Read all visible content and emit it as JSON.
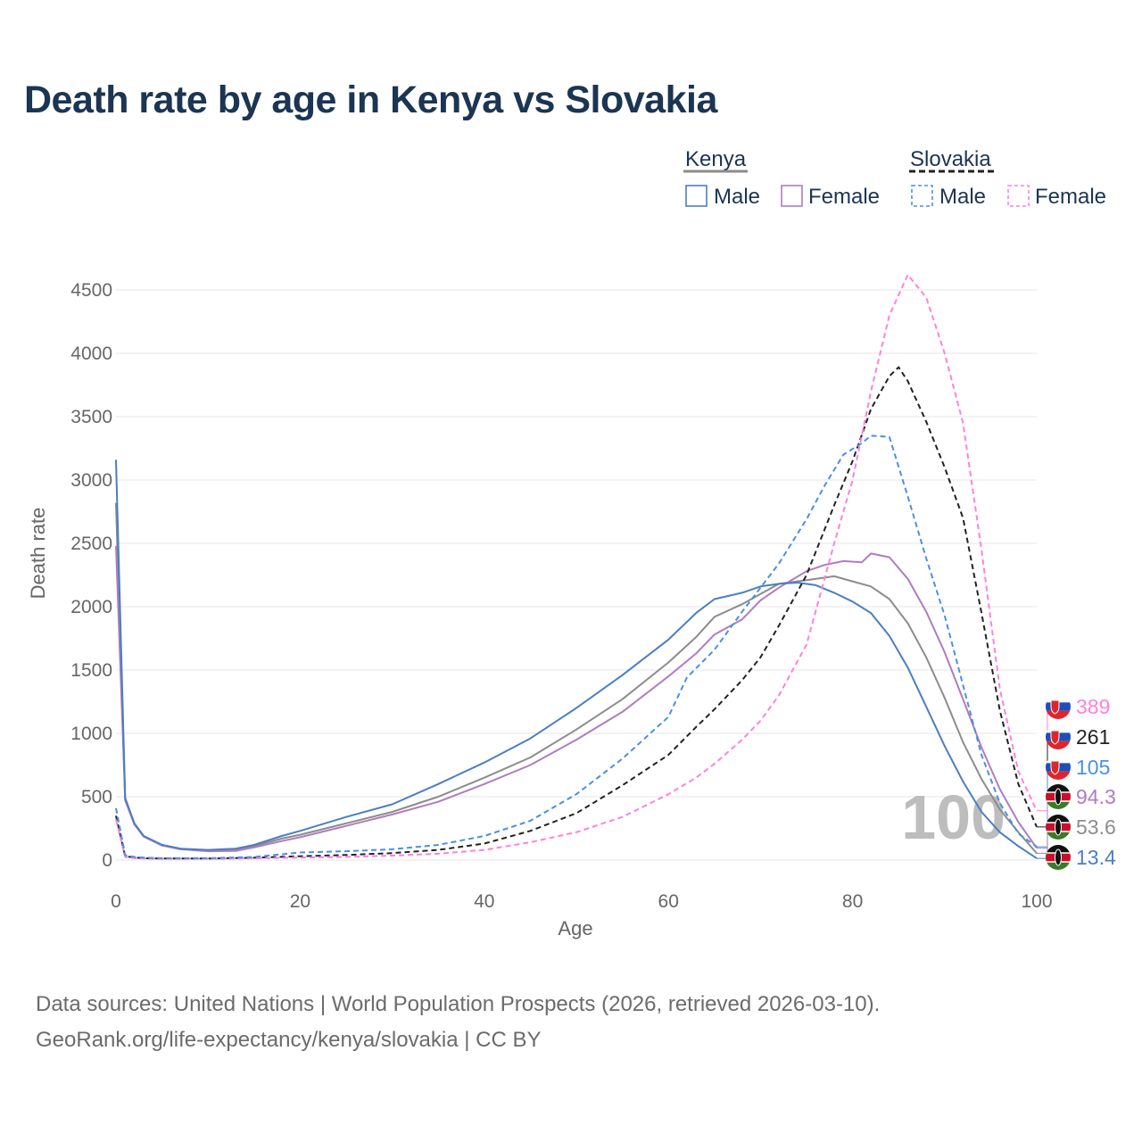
{
  "title": "Death rate by age in Kenya vs Slovakia",
  "footer": {
    "line1": "Data sources: United Nations | World Population Prospects (2026, retrieved 2026-03-10).",
    "line2": "GeoRank.org/life-expectancy/kenya/slovakia | CC BY"
  },
  "watermark": "100",
  "legend": {
    "kenya": {
      "title": "Kenya",
      "male": "Male",
      "female": "Female"
    },
    "slovakia": {
      "title": "Slovakia",
      "male": "Male",
      "female": "Female"
    }
  },
  "colors": {
    "kenya_male": "#4a7fc1",
    "kenya_female": "#b07cc0",
    "kenya_total": "#8c8c8c",
    "slovakia_male": "#4a90e2",
    "slovakia_female": "#ff80e0",
    "slovakia_total": "#222222",
    "title": "#1b3552"
  },
  "chart_data": {
    "type": "line",
    "title": "Death rate by age in Kenya vs Slovakia",
    "xlabel": "Age",
    "ylabel": "Death rate",
    "xlim": [
      0,
      100
    ],
    "ylim": [
      0,
      4500
    ],
    "xticks": [
      0,
      20,
      40,
      60,
      80,
      100
    ],
    "yticks": [
      0,
      500,
      1000,
      1500,
      2000,
      2500,
      3000,
      3500,
      4000,
      4500
    ],
    "series": [
      {
        "key": "kenya_total",
        "name": "Kenya (total)",
        "dashed": false,
        "x": [
          0,
          1,
          2,
          3,
          5,
          7,
          10,
          13,
          15,
          18,
          20,
          25,
          30,
          35,
          40,
          45,
          50,
          55,
          60,
          63,
          65,
          68,
          70,
          72,
          75,
          78,
          80,
          82,
          84,
          86,
          88,
          90,
          92,
          94,
          96,
          98,
          100
        ],
        "y": [
          2820,
          480,
          290,
          190,
          120,
          90,
          75,
          80,
          110,
          170,
          200,
          290,
          380,
          500,
          650,
          810,
          1030,
          1270,
          1560,
          1760,
          1920,
          2020,
          2100,
          2180,
          2210,
          2240,
          2200,
          2160,
          2060,
          1870,
          1600,
          1280,
          930,
          640,
          400,
          220,
          53.6
        ],
        "end_label": "53.6"
      },
      {
        "key": "kenya_female",
        "name": "Kenya Female",
        "dashed": false,
        "x": [
          0,
          1,
          2,
          3,
          5,
          7,
          10,
          13,
          15,
          18,
          20,
          25,
          30,
          35,
          40,
          45,
          50,
          55,
          60,
          63,
          65,
          68,
          70,
          72,
          75,
          77,
          79,
          81,
          82,
          84,
          86,
          88,
          90,
          92,
          94,
          96,
          98,
          100
        ],
        "y": [
          2480,
          470,
          280,
          185,
          115,
          85,
          70,
          72,
          100,
          150,
          180,
          270,
          360,
          460,
          600,
          750,
          950,
          1170,
          1450,
          1630,
          1780,
          1900,
          2050,
          2150,
          2280,
          2330,
          2360,
          2350,
          2420,
          2390,
          2220,
          1960,
          1640,
          1270,
          890,
          560,
          300,
          94.3
        ],
        "end_label": "94.3"
      },
      {
        "key": "kenya_male",
        "name": "Kenya Male",
        "dashed": false,
        "x": [
          0,
          1,
          2,
          3,
          5,
          7,
          10,
          13,
          15,
          18,
          20,
          25,
          30,
          35,
          40,
          45,
          50,
          55,
          60,
          63,
          65,
          68,
          70,
          72,
          74,
          76,
          78,
          80,
          82,
          84,
          86,
          88,
          90,
          92,
          94,
          96,
          98,
          100
        ],
        "y": [
          3160,
          490,
          290,
          190,
          120,
          90,
          80,
          90,
          120,
          190,
          230,
          340,
          440,
          600,
          770,
          960,
          1200,
          1460,
          1740,
          1950,
          2060,
          2110,
          2160,
          2180,
          2190,
          2170,
          2110,
          2040,
          1950,
          1770,
          1520,
          1210,
          900,
          620,
          380,
          220,
          110,
          13.4
        ],
        "end_label": "13.4"
      },
      {
        "key": "slovakia_total",
        "name": "Slovakia (total)",
        "dashed": true,
        "x": [
          0,
          1,
          2,
          3,
          5,
          10,
          15,
          20,
          25,
          30,
          35,
          40,
          45,
          50,
          55,
          60,
          63,
          65,
          68,
          70,
          72,
          75,
          78,
          80,
          82,
          84,
          85,
          86,
          88,
          90,
          92,
          94,
          96,
          98,
          100
        ],
        "y": [
          350,
          30,
          20,
          15,
          12,
          12,
          18,
          30,
          40,
          55,
          80,
          130,
          230,
          370,
          590,
          830,
          1050,
          1190,
          1420,
          1600,
          1850,
          2250,
          2800,
          3150,
          3560,
          3820,
          3890,
          3780,
          3460,
          3100,
          2700,
          1950,
          1180,
          600,
          261
        ],
        "end_label": "261"
      },
      {
        "key": "slovakia_female",
        "name": "Slovakia Female",
        "dashed": true,
        "x": [
          0,
          1,
          2,
          3,
          5,
          10,
          15,
          20,
          25,
          30,
          35,
          40,
          45,
          50,
          55,
          60,
          63,
          65,
          68,
          70,
          72,
          75,
          78,
          80,
          82,
          84,
          86,
          88,
          90,
          92,
          94,
          96,
          98,
          100
        ],
        "y": [
          320,
          25,
          15,
          12,
          10,
          10,
          14,
          20,
          25,
          35,
          50,
          80,
          140,
          220,
          340,
          520,
          650,
          760,
          950,
          1100,
          1300,
          1700,
          2500,
          3000,
          3700,
          4300,
          4620,
          4440,
          4000,
          3450,
          2450,
          1350,
          700,
          389
        ],
        "end_label": "389"
      },
      {
        "key": "slovakia_male",
        "name": "Slovakia Male",
        "dashed": true,
        "x": [
          0,
          1,
          2,
          3,
          5,
          10,
          15,
          20,
          25,
          30,
          35,
          40,
          45,
          50,
          55,
          60,
          62,
          65,
          68,
          70,
          72,
          75,
          77,
          79,
          81,
          82,
          84,
          86,
          88,
          90,
          92,
          94,
          96,
          98,
          100
        ],
        "y": [
          410,
          38,
          25,
          20,
          15,
          15,
          25,
          60,
          70,
          85,
          120,
          190,
          310,
          520,
          800,
          1130,
          1440,
          1660,
          1960,
          2150,
          2340,
          2690,
          2960,
          3200,
          3290,
          3350,
          3340,
          2870,
          2380,
          1930,
          1380,
          830,
          450,
          210,
          105
        ],
        "end_label": "105"
      }
    ]
  }
}
